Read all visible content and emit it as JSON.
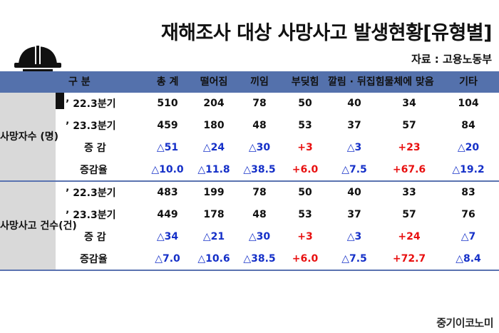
{
  "title": "재해조사 대상 사망사고 발생현황[유형별]",
  "source": "자료 : 고용노동부",
  "header": {
    "gubun": "구 분",
    "columns": [
      "총 계",
      "떨어짐",
      "끼임",
      "부딪힘",
      "깔림 · 뒤집힘",
      "물체에 맞음",
      "기타"
    ]
  },
  "blocks": [
    {
      "label": "사망자수 (명)",
      "rows": [
        {
          "label": "’ 22.3분기",
          "values": [
            "510",
            "204",
            "78",
            "50",
            "40",
            "34",
            "104"
          ]
        },
        {
          "label": "’ 23.3분기",
          "values": [
            "459",
            "180",
            "48",
            "53",
            "37",
            "57",
            "84"
          ]
        },
        {
          "label": "증 감",
          "values": [
            "△51",
            "△24",
            "△30",
            "+3",
            "△3",
            "+23",
            "△20"
          ]
        },
        {
          "label": "증감율",
          "values": [
            "△10.0",
            "△11.8",
            "△38.5",
            "+6.0",
            "△7.5",
            "+67.6",
            "△19.2"
          ]
        }
      ]
    },
    {
      "label": "사망사고 건수(건)",
      "rows": [
        {
          "label": "’ 22.3분기",
          "values": [
            "483",
            "199",
            "78",
            "50",
            "40",
            "33",
            "83"
          ]
        },
        {
          "label": "’ 23.3분기",
          "values": [
            "449",
            "178",
            "48",
            "53",
            "37",
            "57",
            "76"
          ]
        },
        {
          "label": "증 감",
          "values": [
            "△34",
            "△21",
            "△30",
            "+3",
            "△3",
            "+24",
            "△7"
          ]
        },
        {
          "label": "증감율",
          "values": [
            "△7.0",
            "△10.6",
            "△38.5",
            "+6.0",
            "△7.5",
            "+72.7",
            "△8.4"
          ]
        }
      ]
    }
  ],
  "colors": {
    "header_bg": "#5471ac",
    "group_bg": "#d9d9d9",
    "decrease": "#1530c8",
    "increase": "#e81010"
  },
  "icons": {
    "worker": "construction-worker-icon"
  },
  "logo": "중기이코노미"
}
